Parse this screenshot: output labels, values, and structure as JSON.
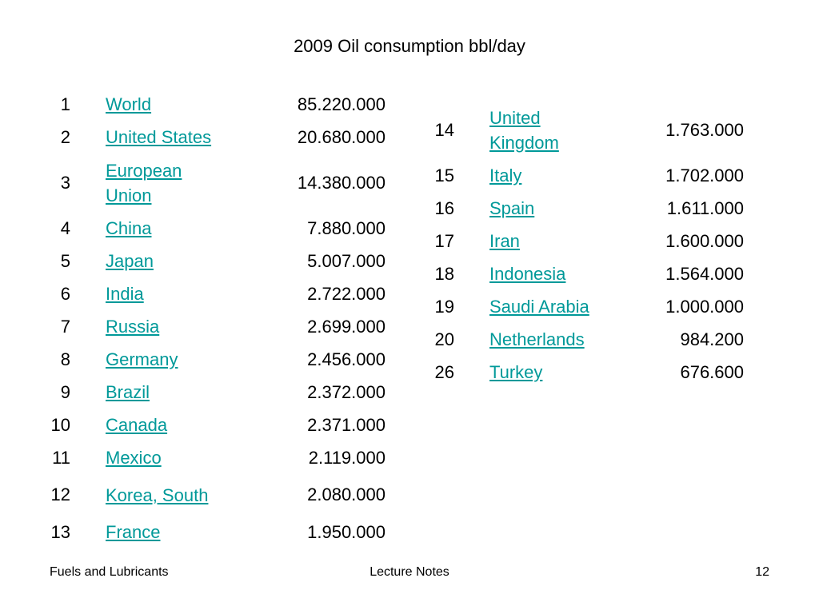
{
  "title": "2009 Oil consumption bbl/day",
  "left_table": [
    {
      "rank": "1",
      "country": "World",
      "value": "85.220.000"
    },
    {
      "rank": "2",
      "country": "United States",
      "value": "20.680.000"
    },
    {
      "rank": "3",
      "country": "European Union",
      "value": "14.380.000"
    },
    {
      "rank": "4",
      "country": "China",
      "value": "7.880.000"
    },
    {
      "rank": "5",
      "country": "Japan",
      "value": "5.007.000"
    },
    {
      "rank": "6",
      "country": "India",
      "value": "2.722.000"
    },
    {
      "rank": "7",
      "country": "Russia",
      "value": "2.699.000"
    },
    {
      "rank": "8",
      "country": "Germany",
      "value": "2.456.000"
    },
    {
      "rank": "9",
      "country": "Brazil",
      "value": "2.372.000"
    },
    {
      "rank": "10",
      "country": "Canada",
      "value": "2.371.000"
    },
    {
      "rank": "11",
      "country": "Mexico",
      "value": "2.119.000"
    },
    {
      "rank": "12",
      "country": "Korea, South",
      "value": "2.080.000"
    },
    {
      "rank": "13",
      "country": "France",
      "value": "1.950.000"
    }
  ],
  "right_table": [
    {
      "rank": "14",
      "country": "United Kingdom",
      "value": "1.763.000"
    },
    {
      "rank": "15",
      "country": "Italy",
      "value": "1.702.000"
    },
    {
      "rank": "16",
      "country": "Spain",
      "value": "1.611.000"
    },
    {
      "rank": "17",
      "country": "Iran",
      "value": "1.600.000"
    },
    {
      "rank": "18",
      "country": "Indonesia",
      "value": "1.564.000"
    },
    {
      "rank": "19",
      "country": "Saudi Arabia",
      "value": "1.000.000"
    },
    {
      "rank": "20",
      "country": "Netherlands",
      "value": "984.200"
    },
    {
      "rank": "26",
      "country": "Turkey",
      "value": "676.600"
    }
  ],
  "footer": {
    "left": "Fuels and Lubricants",
    "center": "Lecture Notes",
    "right": "12"
  },
  "colors": {
    "link": "#009999",
    "text": "#000000",
    "background": "#ffffff"
  }
}
